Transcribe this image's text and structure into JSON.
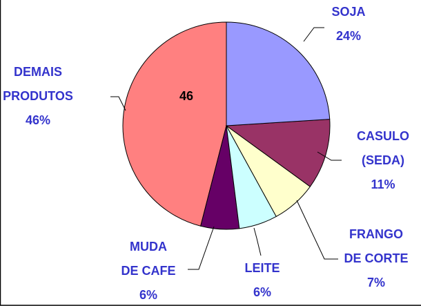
{
  "chart_data": {
    "type": "pie",
    "categories": [
      "SOJA",
      "CASULO\n(SEDA)",
      "FRANGO\nDE CORTE",
      "LEITE",
      "MUDA\nDE CAFE",
      "DEMAIS\nPRODUTOS"
    ],
    "values": [
      24,
      11,
      7,
      6,
      6,
      46
    ],
    "value_labels": [
      "24%",
      "11%",
      "7%",
      "6%",
      "6%",
      "46%"
    ],
    "colors": [
      "#9999ff",
      "#993366",
      "#ffffcc",
      "#ccffff",
      "#660066",
      "#ff8080"
    ],
    "annotation": "46"
  }
}
